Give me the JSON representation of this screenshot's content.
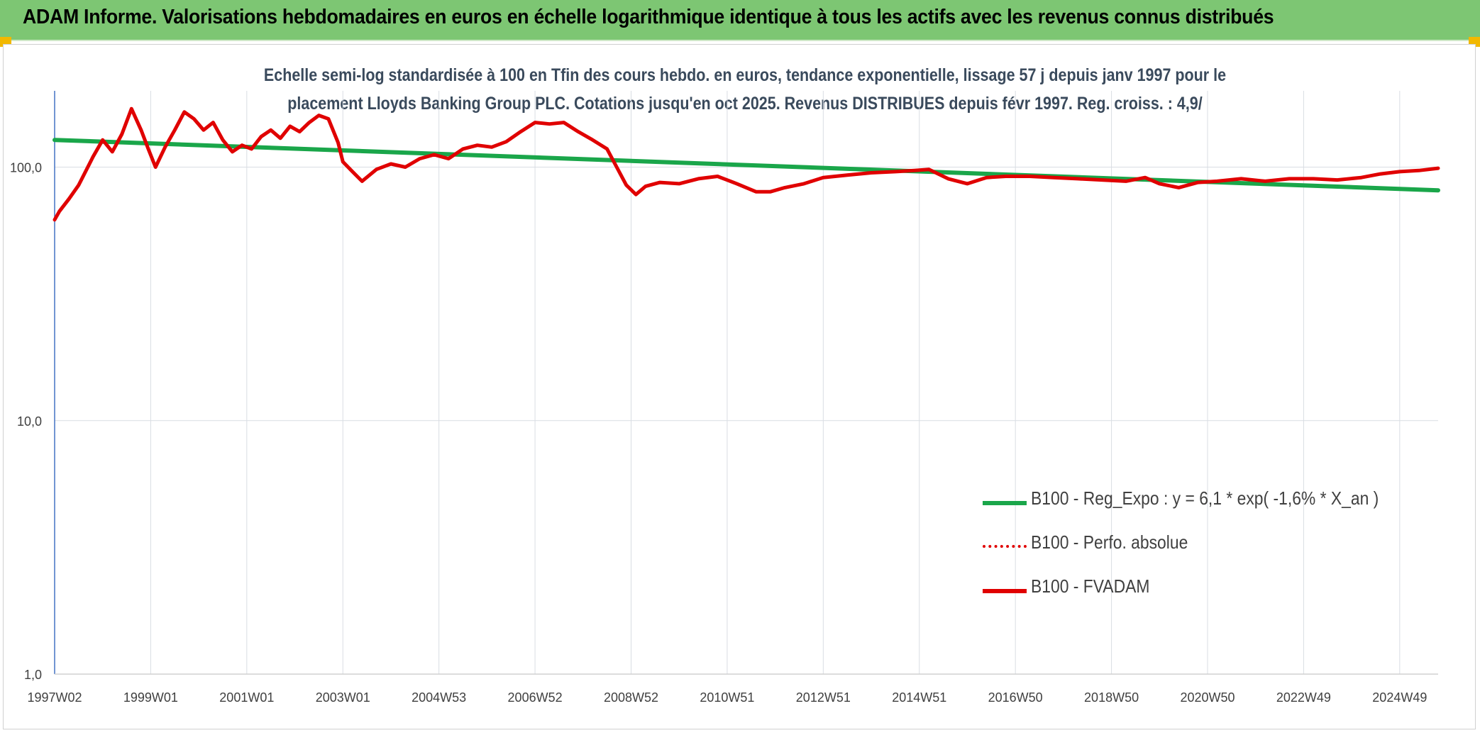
{
  "header": {
    "title": "ADAM Informe. Valorisations hebdomadaires en euros en échelle logarithmique identique à tous les actifs avec les revenus connus distribués",
    "background_color": "#7dc673",
    "corner_color": "#f2b800"
  },
  "chart_data": {
    "type": "line",
    "yscale": "log",
    "title_lines": [
      "Echelle semi-log standardisée à 100 en Tfin des cours hebdo. en euros, tendance exponentielle, lissage 57 j depuis janv 1997 pour le",
      "placement Lloyds Banking Group PLC. Cotations jusqu'en oct 2025. Revenus DISTRIBUES depuis févr 1997. Reg. croiss. : 4,9/"
    ],
    "ylim": [
      1,
      200
    ],
    "y_ticks": [
      {
        "value": 1,
        "label": "1,0"
      },
      {
        "value": 10,
        "label": "10,0"
      },
      {
        "value": 100,
        "label": "100,0"
      }
    ],
    "xlim": [
      1997.0,
      2025.8
    ],
    "x_ticks": [
      {
        "value": 1997.0,
        "label": "1997W02"
      },
      {
        "value": 1999.0,
        "label": "1999W01"
      },
      {
        "value": 2001.0,
        "label": "2001W01"
      },
      {
        "value": 2003.0,
        "label": "2003W01"
      },
      {
        "value": 2005.0,
        "label": "2004W53"
      },
      {
        "value": 2007.0,
        "label": "2006W52"
      },
      {
        "value": 2009.0,
        "label": "2008W52"
      },
      {
        "value": 2011.0,
        "label": "2010W51"
      },
      {
        "value": 2013.0,
        "label": "2012W51"
      },
      {
        "value": 2015.0,
        "label": "2014W51"
      },
      {
        "value": 2017.0,
        "label": "2016W50"
      },
      {
        "value": 2019.0,
        "label": "2018W50"
      },
      {
        "value": 2021.0,
        "label": "2020W50"
      },
      {
        "value": 2023.0,
        "label": "2022W49"
      },
      {
        "value": 2025.0,
        "label": "2024W49"
      }
    ],
    "legend": [
      {
        "label": "B100 - Reg_Expo : y = 6,1 * exp( -1,6% *  X_an )",
        "color": "#1aa64a",
        "style": "solid"
      },
      {
        "label": "B100 - Perfo. absolue",
        "color": "#e00000",
        "style": "dotted"
      },
      {
        "label": "B100 - FVADAM",
        "color": "#e00000",
        "style": "solid"
      }
    ],
    "series": [
      {
        "name": "B100 - Reg_Expo : y = 6,1 * exp( -1,6% *  X_an )",
        "color": "#1aa64a",
        "x": [
          1997.0,
          2025.8
        ],
        "values": [
          128,
          81
        ]
      },
      {
        "name": "B100 - FVADAM",
        "color": "#e00000",
        "x": [
          1997.0,
          1997.1,
          1997.3,
          1997.5,
          1997.8,
          1998.0,
          1998.2,
          1998.4,
          1998.6,
          1998.8,
          1998.95,
          1999.1,
          1999.3,
          1999.5,
          1999.7,
          1999.9,
          2000.1,
          2000.3,
          2000.5,
          2000.7,
          2000.9,
          2001.1,
          2001.3,
          2001.5,
          2001.7,
          2001.9,
          2002.1,
          2002.3,
          2002.5,
          2002.7,
          2002.9,
          2003.0,
          2003.2,
          2003.4,
          2003.7,
          2004.0,
          2004.3,
          2004.6,
          2004.9,
          2005.2,
          2005.5,
          2005.8,
          2006.1,
          2006.4,
          2006.7,
          2007.0,
          2007.3,
          2007.6,
          2007.9,
          2008.2,
          2008.5,
          2008.7,
          2008.9,
          2009.1,
          2009.3,
          2009.6,
          2010.0,
          2010.4,
          2010.8,
          2011.2,
          2011.6,
          2011.9,
          2012.2,
          2012.6,
          2013.0,
          2013.5,
          2014.0,
          2014.5,
          2014.9,
          2015.2,
          2015.6,
          2016.0,
          2016.4,
          2016.8,
          2017.3,
          2017.8,
          2018.3,
          2018.8,
          2019.3,
          2019.7,
          2020.0,
          2020.4,
          2020.8,
          2021.2,
          2021.7,
          2022.2,
          2022.7,
          2023.2,
          2023.7,
          2024.2,
          2024.6,
          2025.0,
          2025.4,
          2025.8
        ],
        "values": [
          62,
          67,
          75,
          85,
          110,
          128,
          115,
          135,
          170,
          140,
          118,
          100,
          120,
          140,
          165,
          155,
          140,
          150,
          128,
          115,
          122,
          118,
          132,
          140,
          130,
          145,
          138,
          150,
          160,
          155,
          125,
          105,
          96,
          88,
          98,
          103,
          100,
          108,
          112,
          108,
          118,
          122,
          120,
          126,
          138,
          150,
          148,
          150,
          138,
          128,
          118,
          100,
          85,
          78,
          84,
          87,
          86,
          90,
          92,
          86,
          80,
          80,
          83,
          86,
          91,
          93,
          95,
          96,
          97,
          98,
          90,
          86,
          91,
          92,
          92,
          91,
          90,
          89,
          88,
          91,
          86,
          83,
          87,
          88,
          90,
          88,
          90,
          90,
          89,
          91,
          94,
          96,
          97,
          99
        ]
      }
    ]
  }
}
